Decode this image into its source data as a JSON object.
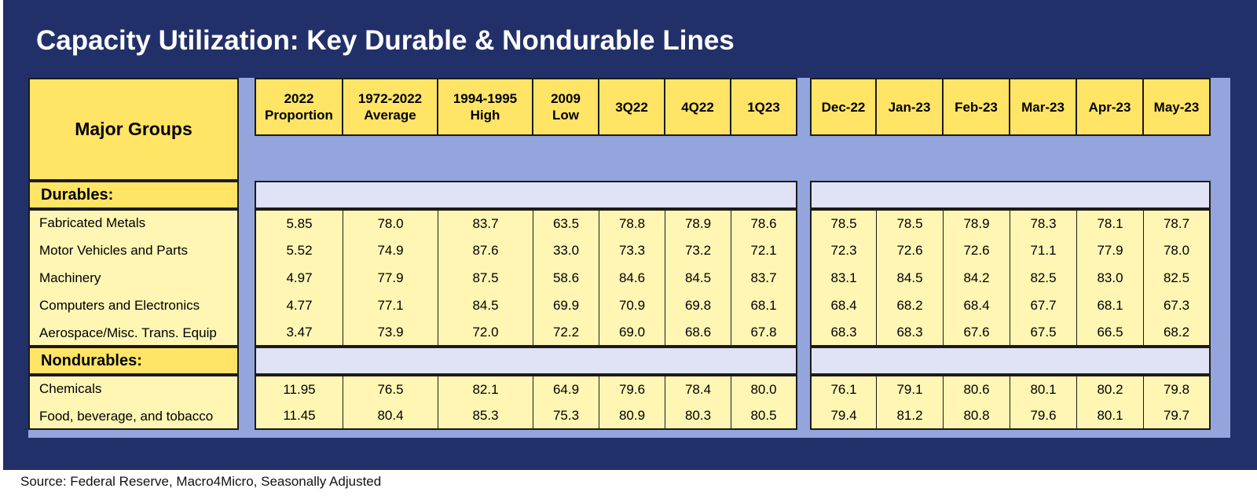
{
  "title": "Capacity Utilization: Key Durable & Nondurable Lines",
  "group_header": "Major Groups",
  "columns_left": [
    {
      "line1": "2022",
      "line2": "Proportion"
    },
    {
      "line1": "1972-2022",
      "line2": "Average"
    },
    {
      "line1": "1994-1995",
      "line2": "High"
    },
    {
      "line1": "2009",
      "line2": "Low"
    },
    {
      "line1": "3Q22",
      "line2": ""
    },
    {
      "line1": "4Q22",
      "line2": ""
    },
    {
      "line1": "1Q23",
      "line2": ""
    }
  ],
  "columns_right": [
    {
      "line1": "Dec-22",
      "line2": ""
    },
    {
      "line1": "Jan-23",
      "line2": ""
    },
    {
      "line1": "Feb-23",
      "line2": ""
    },
    {
      "line1": "Mar-23",
      "line2": ""
    },
    {
      "line1": "Apr-23",
      "line2": ""
    },
    {
      "line1": "May-23",
      "line2": ""
    }
  ],
  "sections": [
    {
      "name": "Durables:",
      "rows": [
        {
          "label": "Fabricated Metals",
          "left": [
            "5.85",
            "78.0",
            "83.7",
            "63.5",
            "78.8",
            "78.9",
            "78.6"
          ],
          "right": [
            "78.5",
            "78.5",
            "78.9",
            "78.3",
            "78.1",
            "78.7"
          ]
        },
        {
          "label": "Motor Vehicles and Parts",
          "left": [
            "5.52",
            "74.9",
            "87.6",
            "33.0",
            "73.3",
            "73.2",
            "72.1"
          ],
          "right": [
            "72.3",
            "72.6",
            "72.6",
            "71.1",
            "77.9",
            "78.0"
          ]
        },
        {
          "label": "Machinery",
          "left": [
            "4.97",
            "77.9",
            "87.5",
            "58.6",
            "84.6",
            "84.5",
            "83.7"
          ],
          "right": [
            "83.1",
            "84.5",
            "84.2",
            "82.5",
            "83.0",
            "82.5"
          ]
        },
        {
          "label": "Computers and Electronics",
          "left": [
            "4.77",
            "77.1",
            "84.5",
            "69.9",
            "70.9",
            "69.8",
            "68.1"
          ],
          "right": [
            "68.4",
            "68.2",
            "68.4",
            "67.7",
            "68.1",
            "67.3"
          ]
        },
        {
          "label": "Aerospace/Misc. Trans. Equip",
          "left": [
            "3.47",
            "73.9",
            "72.0",
            "72.2",
            "69.0",
            "68.6",
            "67.8"
          ],
          "right": [
            "68.3",
            "68.3",
            "67.6",
            "67.5",
            "66.5",
            "68.2"
          ]
        }
      ]
    },
    {
      "name": "Nondurables:",
      "rows": [
        {
          "label": "Chemicals",
          "left": [
            "11.95",
            "76.5",
            "82.1",
            "64.9",
            "79.6",
            "78.4",
            "80.0"
          ],
          "right": [
            "76.1",
            "79.1",
            "80.6",
            "80.1",
            "80.2",
            "79.8"
          ]
        },
        {
          "label": "Food, beverage, and tobacco",
          "left": [
            "11.45",
            "80.4",
            "85.3",
            "75.3",
            "80.9",
            "80.3",
            "80.5"
          ],
          "right": [
            "79.4",
            "81.2",
            "80.8",
            "79.6",
            "80.1",
            "79.7"
          ]
        }
      ]
    }
  ],
  "source": "Source: Federal Reserve, Macro4Micro, Seasonally Adjusted"
}
